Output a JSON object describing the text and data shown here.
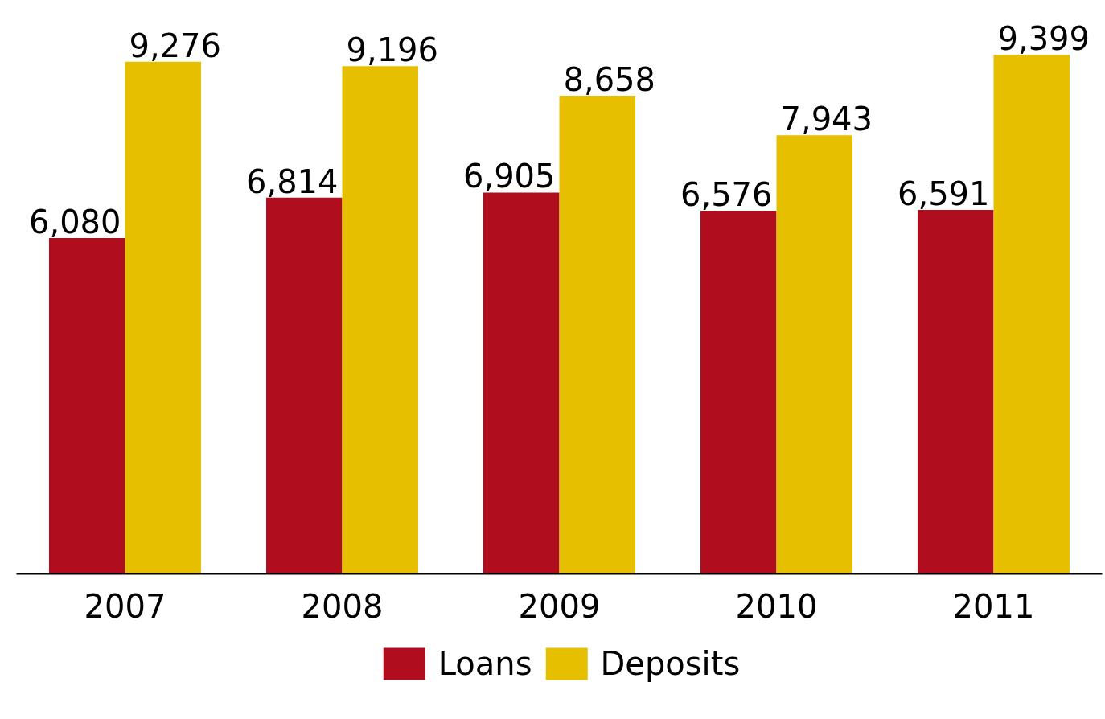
{
  "chart_data": {
    "type": "bar",
    "categories": [
      "2007",
      "2008",
      "2009",
      "2010",
      "2011"
    ],
    "series": [
      {
        "name": "Loans",
        "color": "#b00d1f",
        "values": [
          6080,
          6814,
          6905,
          6576,
          6591
        ],
        "value_labels": [
          "6,080",
          "6,814",
          "6,905",
          "6,576",
          "6,591"
        ]
      },
      {
        "name": "Deposits",
        "color": "#e5bf00",
        "values": [
          9276,
          9196,
          8658,
          7943,
          9399
        ],
        "value_labels": [
          "9,276",
          "9,196",
          "8,658",
          "7,943",
          "9,399"
        ]
      }
    ],
    "tick_labels": "x",
    "legend": "bottom"
  }
}
